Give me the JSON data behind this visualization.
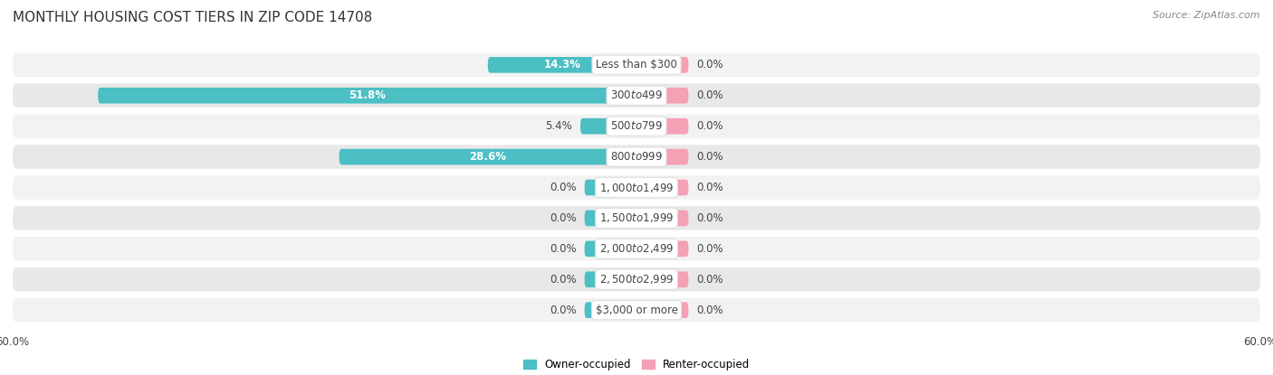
{
  "title": "MONTHLY HOUSING COST TIERS IN ZIP CODE 14708",
  "source": "Source: ZipAtlas.com",
  "categories": [
    "Less than $300",
    "$300 to $499",
    "$500 to $799",
    "$800 to $999",
    "$1,000 to $1,499",
    "$1,500 to $1,999",
    "$2,000 to $2,499",
    "$2,500 to $2,999",
    "$3,000 or more"
  ],
  "owner_values": [
    14.3,
    51.8,
    5.4,
    28.6,
    0.0,
    0.0,
    0.0,
    0.0,
    0.0
  ],
  "renter_values": [
    0.0,
    0.0,
    0.0,
    0.0,
    0.0,
    0.0,
    0.0,
    0.0,
    0.0
  ],
  "owner_color": "#4BBFC4",
  "renter_color": "#F4A0B5",
  "axis_limit": 60.0,
  "title_color": "#333333",
  "label_color": "#444444",
  "source_color": "#888888",
  "background_color": "#FFFFFF",
  "row_bg_even": "#F2F2F2",
  "row_bg_odd": "#E8E8E8",
  "legend_owner": "Owner-occupied",
  "legend_renter": "Renter-occupied",
  "zero_bar_size": 5.0,
  "min_bar_for_inside_label": 10.0,
  "title_fontsize": 11,
  "label_fontsize": 8.5,
  "source_fontsize": 8
}
